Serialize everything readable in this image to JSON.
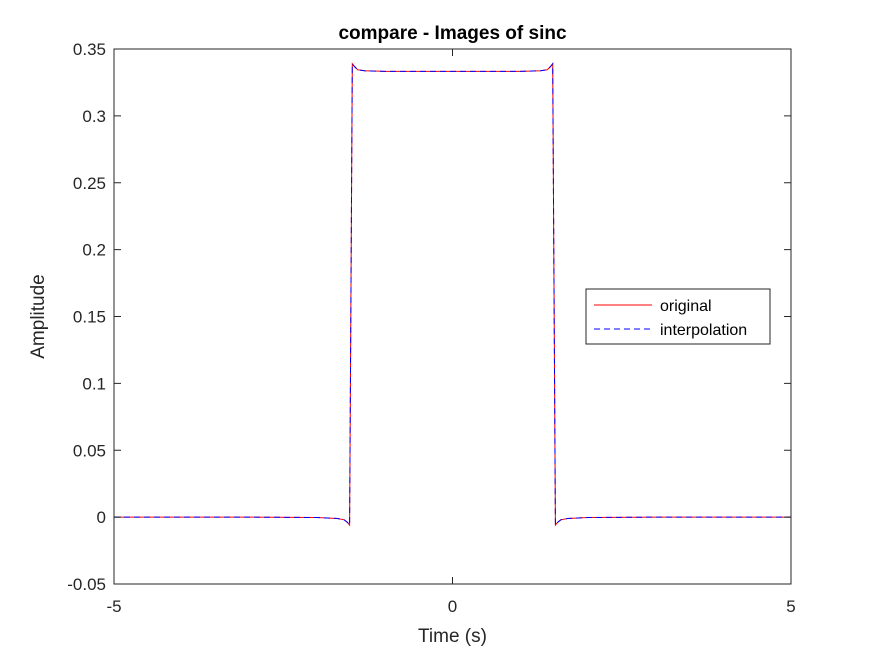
{
  "chart_data": {
    "type": "line",
    "title": "compare - Images of sinc",
    "xlabel": "Time (s)",
    "ylabel": "Amplitude",
    "xlim": [
      -5,
      5
    ],
    "ylim": [
      -0.05,
      0.35
    ],
    "xticks": [
      -5,
      0,
      5
    ],
    "xtick_labels": [
      "-5",
      "0",
      "5"
    ],
    "yticks": [
      -0.05,
      0,
      0.05,
      0.1,
      0.15,
      0.2,
      0.25,
      0.3,
      0.35
    ],
    "ytick_labels": [
      "-0.05",
      "0",
      "0.05",
      "0.1",
      "0.15",
      "0.2",
      "0.25",
      "0.3",
      "0.35"
    ],
    "grid": false,
    "legend_placement": "right",
    "series": [
      {
        "name": "original",
        "color": "#ff0000",
        "style": "solid",
        "x": [
          -5,
          -3,
          -2,
          -1.7,
          -1.6,
          -1.55,
          -1.52,
          -1.5,
          -1.48,
          -1.45,
          -1.4,
          -1.3,
          -1.0,
          -0.5,
          0,
          0.5,
          1.0,
          1.3,
          1.4,
          1.45,
          1.48,
          1.5,
          1.52,
          1.55,
          1.6,
          1.7,
          2,
          3,
          5
        ],
        "y": [
          0,
          0,
          -0.0003,
          -0.001,
          -0.002,
          -0.004,
          -0.006,
          0.167,
          0.339,
          0.337,
          0.3345,
          0.3337,
          0.3333,
          0.3333,
          0.3333,
          0.3333,
          0.3333,
          0.3337,
          0.3345,
          0.337,
          0.339,
          0.167,
          -0.006,
          -0.004,
          -0.002,
          -0.001,
          -0.0003,
          0,
          0
        ]
      },
      {
        "name": "interpolation",
        "color": "#0000ff",
        "style": "dashed",
        "x": [
          -5,
          -3,
          -2,
          -1.7,
          -1.6,
          -1.55,
          -1.52,
          -1.5,
          -1.48,
          -1.45,
          -1.4,
          -1.3,
          -1.0,
          -0.5,
          0,
          0.5,
          1.0,
          1.3,
          1.4,
          1.45,
          1.48,
          1.5,
          1.52,
          1.55,
          1.6,
          1.7,
          2,
          3,
          5
        ],
        "y": [
          0,
          0,
          -0.0003,
          -0.001,
          -0.002,
          -0.004,
          -0.006,
          0.167,
          0.339,
          0.337,
          0.3345,
          0.3337,
          0.3333,
          0.3333,
          0.3333,
          0.3333,
          0.3333,
          0.3337,
          0.3345,
          0.337,
          0.339,
          0.167,
          -0.006,
          -0.004,
          -0.002,
          -0.001,
          -0.0003,
          0,
          0
        ]
      }
    ]
  }
}
